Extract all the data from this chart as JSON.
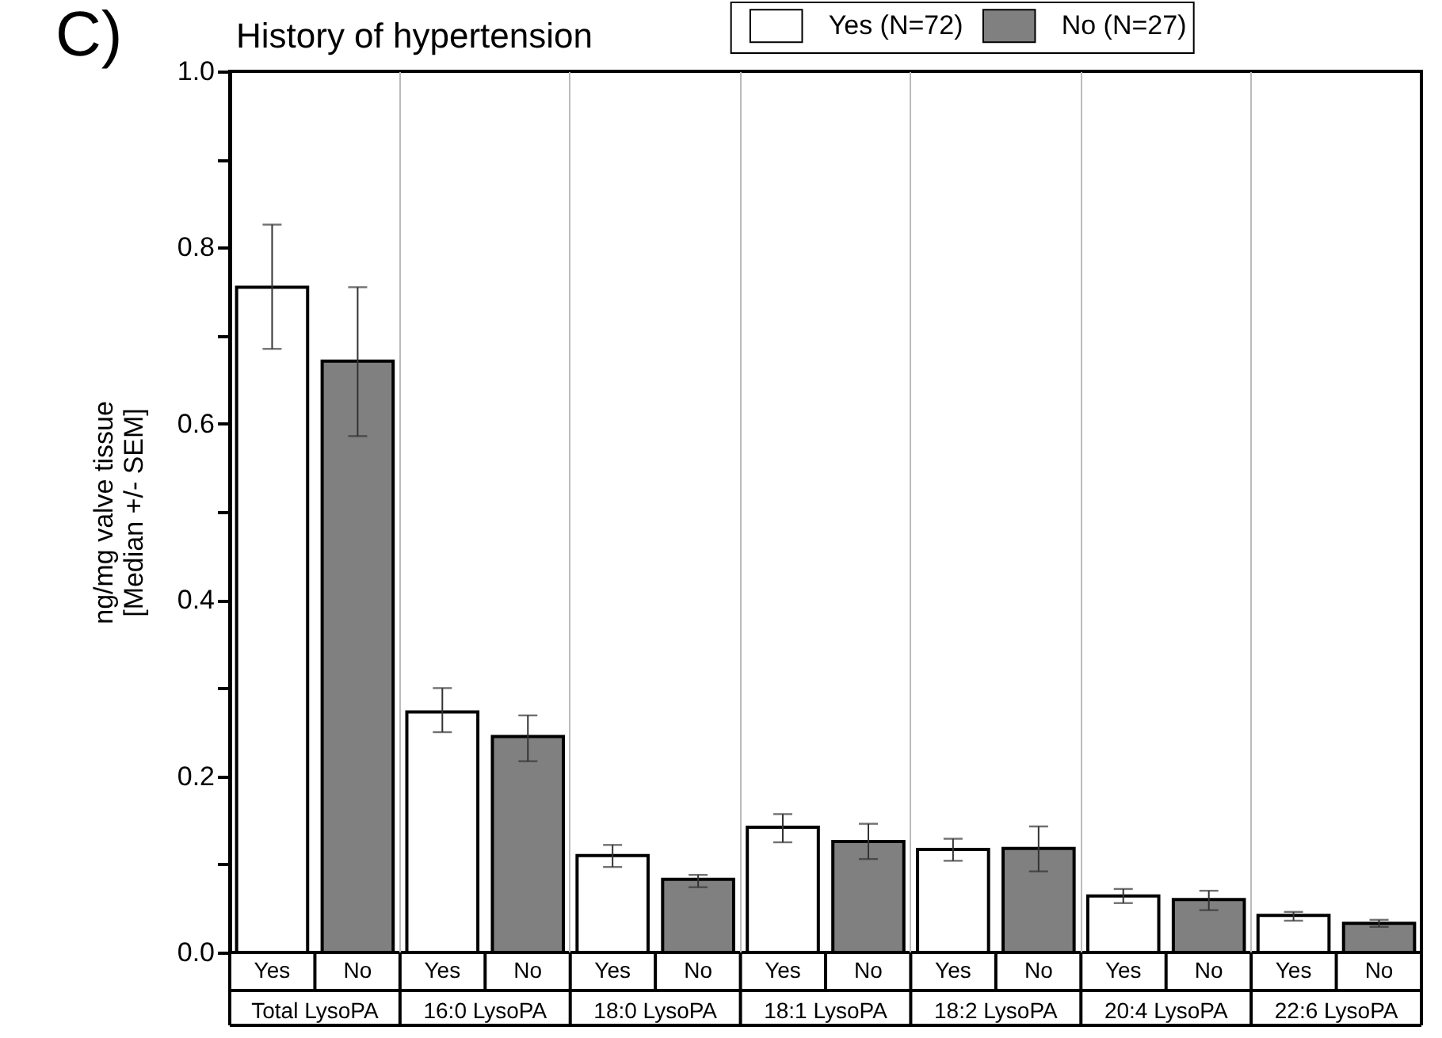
{
  "chart_data": {
    "type": "bar",
    "title": "History of hypertension",
    "ylabel": "ng/mg valve tissue\n[Median +/- SEM]",
    "categories": [
      "Total LysoPA",
      "16:0 LysoPA",
      "18:0 LysoPA",
      "18:1 LysoPA",
      "18:2 LysoPA",
      "20:4 LysoPA",
      "22:6 LysoPA"
    ],
    "series": [
      {
        "name": "Yes (N=72)",
        "color": "#ffffff",
        "values": [
          0.755,
          0.273,
          0.11,
          0.142,
          0.117,
          0.064,
          0.042
        ],
        "errors": [
          [
            0.685,
            0.826
          ],
          [
            0.25,
            0.3
          ],
          [
            0.097,
            0.122
          ],
          [
            0.125,
            0.157
          ],
          [
            0.104,
            0.129
          ],
          [
            0.056,
            0.072
          ],
          [
            0.036,
            0.046
          ]
        ]
      },
      {
        "name": "No (N=27)",
        "color": "#808080",
        "values": [
          0.671,
          0.245,
          0.083,
          0.126,
          0.118,
          0.06,
          0.033
        ],
        "errors": [
          [
            0.586,
            0.755
          ],
          [
            0.217,
            0.269
          ],
          [
            0.074,
            0.088
          ],
          [
            0.106,
            0.146
          ],
          [
            0.092,
            0.143
          ],
          [
            0.048,
            0.07
          ],
          [
            0.029,
            0.037
          ]
        ]
      }
    ],
    "ylim": [
      0,
      1.0
    ],
    "yticks": [
      {
        "value": 0,
        "label": "0.0"
      },
      {
        "value": 0.1,
        "label": null
      },
      {
        "value": 0.2,
        "label": "0.2"
      },
      {
        "value": 0.3,
        "label": null
      },
      {
        "value": 0.4,
        "label": "0.4"
      },
      {
        "value": 0.5,
        "label": null
      },
      {
        "value": 0.6,
        "label": "0.6"
      },
      {
        "value": 0.7,
        "label": null
      },
      {
        "value": 0.8,
        "label": "0.8"
      },
      {
        "value": 0.9,
        "label": null
      },
      {
        "value": 1.0,
        "label": "1.0"
      }
    ],
    "grid": "x",
    "legend": "top",
    "annotations": [
      "C)",
      "Yes",
      "No",
      "Yes",
      "No",
      "Yes",
      "No",
      "Yes",
      "No",
      "Yes",
      "No",
      "Yes",
      "No",
      "Yes",
      "No"
    ]
  }
}
